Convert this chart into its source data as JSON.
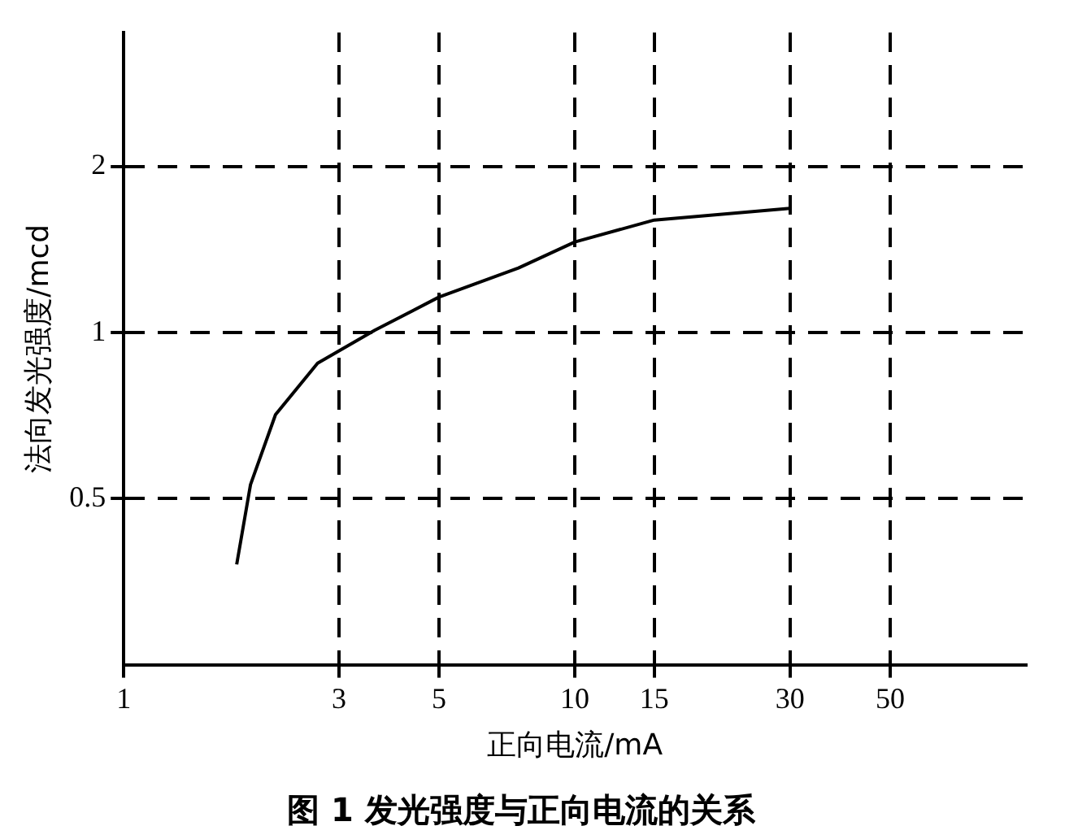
{
  "chart_data": {
    "type": "line",
    "title": "图 1 发光强度与正向电流的关系",
    "xlabel": "正向电流/mA",
    "ylabel": "法向发光强度/mcd",
    "x": [
      1.78,
      1.91,
      2.17,
      2.69,
      3.6,
      5,
      7.5,
      10,
      15,
      30
    ],
    "series": [
      {
        "color": "#000000",
        "values": [
          0.38,
          0.53,
          0.71,
          0.88,
          1.01,
          1.16,
          1.31,
          1.46,
          1.6,
          1.68
        ]
      }
    ],
    "log": "xy",
    "xlim": [
      1,
      100
    ],
    "ylim": [
      0.25,
      3.5
    ],
    "xticks": [
      1,
      3,
      5,
      10,
      15,
      30,
      50
    ],
    "yticks": [
      0.5,
      1,
      2
    ],
    "grid": true,
    "marker": "none",
    "line_style": "solid",
    "legend": false
  }
}
